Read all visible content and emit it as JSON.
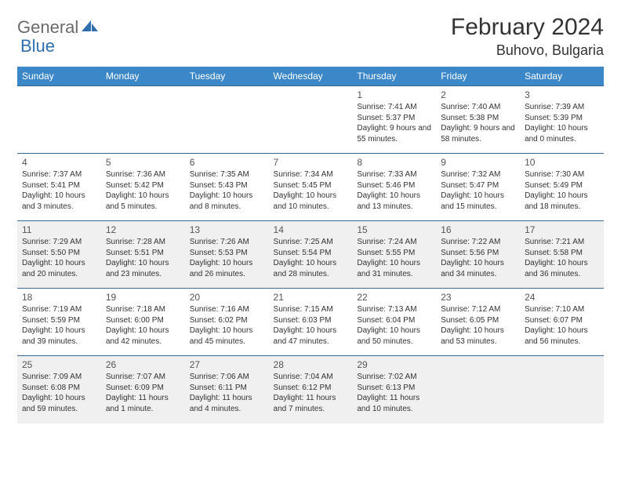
{
  "brand": {
    "word1": "General",
    "word2": "Blue",
    "accent_color": "#2f6fae",
    "gray_color": "#6b6b6b"
  },
  "header": {
    "title": "February 2024",
    "location": "Buhovo, Bulgaria"
  },
  "calendar": {
    "header_bg": "#3b87c8",
    "border_color": "#3b6a94",
    "shade_color": "#f0f0f0",
    "days": [
      "Sunday",
      "Monday",
      "Tuesday",
      "Wednesday",
      "Thursday",
      "Friday",
      "Saturday"
    ],
    "weeks": [
      {
        "shaded": false,
        "cells": [
          null,
          null,
          null,
          null,
          {
            "n": "1",
            "sunrise": "7:41 AM",
            "sunset": "5:37 PM",
            "daylight": "9 hours and 55 minutes."
          },
          {
            "n": "2",
            "sunrise": "7:40 AM",
            "sunset": "5:38 PM",
            "daylight": "9 hours and 58 minutes."
          },
          {
            "n": "3",
            "sunrise": "7:39 AM",
            "sunset": "5:39 PM",
            "daylight": "10 hours and 0 minutes."
          }
        ]
      },
      {
        "shaded": false,
        "cells": [
          {
            "n": "4",
            "sunrise": "7:37 AM",
            "sunset": "5:41 PM",
            "daylight": "10 hours and 3 minutes."
          },
          {
            "n": "5",
            "sunrise": "7:36 AM",
            "sunset": "5:42 PM",
            "daylight": "10 hours and 5 minutes."
          },
          {
            "n": "6",
            "sunrise": "7:35 AM",
            "sunset": "5:43 PM",
            "daylight": "10 hours and 8 minutes."
          },
          {
            "n": "7",
            "sunrise": "7:34 AM",
            "sunset": "5:45 PM",
            "daylight": "10 hours and 10 minutes."
          },
          {
            "n": "8",
            "sunrise": "7:33 AM",
            "sunset": "5:46 PM",
            "daylight": "10 hours and 13 minutes."
          },
          {
            "n": "9",
            "sunrise": "7:32 AM",
            "sunset": "5:47 PM",
            "daylight": "10 hours and 15 minutes."
          },
          {
            "n": "10",
            "sunrise": "7:30 AM",
            "sunset": "5:49 PM",
            "daylight": "10 hours and 18 minutes."
          }
        ]
      },
      {
        "shaded": true,
        "cells": [
          {
            "n": "11",
            "sunrise": "7:29 AM",
            "sunset": "5:50 PM",
            "daylight": "10 hours and 20 minutes."
          },
          {
            "n": "12",
            "sunrise": "7:28 AM",
            "sunset": "5:51 PM",
            "daylight": "10 hours and 23 minutes."
          },
          {
            "n": "13",
            "sunrise": "7:26 AM",
            "sunset": "5:53 PM",
            "daylight": "10 hours and 26 minutes."
          },
          {
            "n": "14",
            "sunrise": "7:25 AM",
            "sunset": "5:54 PM",
            "daylight": "10 hours and 28 minutes."
          },
          {
            "n": "15",
            "sunrise": "7:24 AM",
            "sunset": "5:55 PM",
            "daylight": "10 hours and 31 minutes."
          },
          {
            "n": "16",
            "sunrise": "7:22 AM",
            "sunset": "5:56 PM",
            "daylight": "10 hours and 34 minutes."
          },
          {
            "n": "17",
            "sunrise": "7:21 AM",
            "sunset": "5:58 PM",
            "daylight": "10 hours and 36 minutes."
          }
        ]
      },
      {
        "shaded": false,
        "cells": [
          {
            "n": "18",
            "sunrise": "7:19 AM",
            "sunset": "5:59 PM",
            "daylight": "10 hours and 39 minutes."
          },
          {
            "n": "19",
            "sunrise": "7:18 AM",
            "sunset": "6:00 PM",
            "daylight": "10 hours and 42 minutes."
          },
          {
            "n": "20",
            "sunrise": "7:16 AM",
            "sunset": "6:02 PM",
            "daylight": "10 hours and 45 minutes."
          },
          {
            "n": "21",
            "sunrise": "7:15 AM",
            "sunset": "6:03 PM",
            "daylight": "10 hours and 47 minutes."
          },
          {
            "n": "22",
            "sunrise": "7:13 AM",
            "sunset": "6:04 PM",
            "daylight": "10 hours and 50 minutes."
          },
          {
            "n": "23",
            "sunrise": "7:12 AM",
            "sunset": "6:05 PM",
            "daylight": "10 hours and 53 minutes."
          },
          {
            "n": "24",
            "sunrise": "7:10 AM",
            "sunset": "6:07 PM",
            "daylight": "10 hours and 56 minutes."
          }
        ]
      },
      {
        "shaded": true,
        "cells": [
          {
            "n": "25",
            "sunrise": "7:09 AM",
            "sunset": "6:08 PM",
            "daylight": "10 hours and 59 minutes."
          },
          {
            "n": "26",
            "sunrise": "7:07 AM",
            "sunset": "6:09 PM",
            "daylight": "11 hours and 1 minute."
          },
          {
            "n": "27",
            "sunrise": "7:06 AM",
            "sunset": "6:11 PM",
            "daylight": "11 hours and 4 minutes."
          },
          {
            "n": "28",
            "sunrise": "7:04 AM",
            "sunset": "6:12 PM",
            "daylight": "11 hours and 7 minutes."
          },
          {
            "n": "29",
            "sunrise": "7:02 AM",
            "sunset": "6:13 PM",
            "daylight": "11 hours and 10 minutes."
          },
          null,
          null
        ]
      }
    ],
    "labels": {
      "sunrise": "Sunrise:",
      "sunset": "Sunset:",
      "daylight": "Daylight:"
    }
  }
}
